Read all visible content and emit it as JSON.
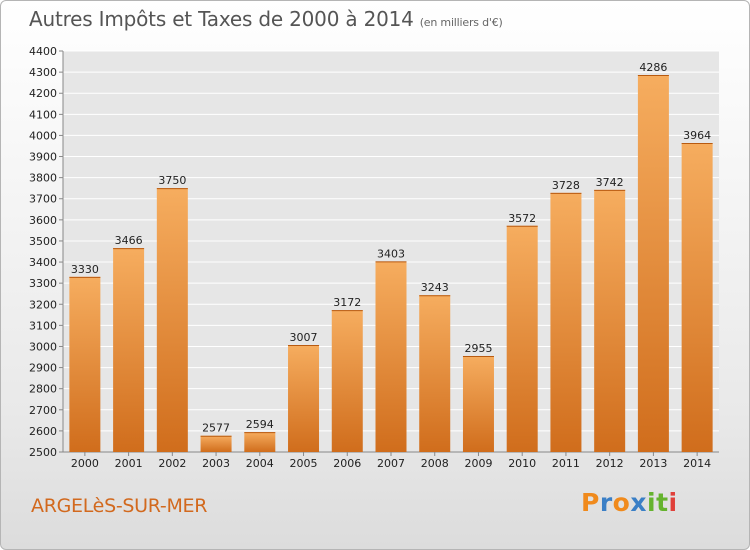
{
  "header": {
    "title": "Autres Impôts et Taxes de 2000 à 2014",
    "subtitle": "(en milliers d'€)"
  },
  "footer": {
    "place": "ARGELèS-SUR-MER",
    "logo_letters": [
      "P",
      "r",
      "o",
      "x",
      "i",
      "t",
      "i"
    ]
  },
  "colors": {
    "bar": "#f0903a",
    "bar_light": "#f6ad5f",
    "bar_dark": "#d06d1c",
    "place_text": "#d2691e",
    "logo": [
      "#f08a1c",
      "#3a7fc6",
      "#f08a1c",
      "#3a7fc6",
      "#65b32e",
      "#65b32e",
      "#e0403a"
    ]
  },
  "chart_data": {
    "type": "bar",
    "categories": [
      "2000",
      "2001",
      "2002",
      "2003",
      "2004",
      "2005",
      "2006",
      "2007",
      "2008",
      "2009",
      "2010",
      "2011",
      "2012",
      "2013",
      "2014"
    ],
    "values": [
      3330,
      3466,
      3750,
      2577,
      2594,
      3007,
      3172,
      3403,
      3243,
      2955,
      3572,
      3728,
      3742,
      4286,
      3964
    ],
    "ylim": [
      2500,
      4400
    ],
    "yticks": [
      2500,
      2600,
      2700,
      2800,
      2900,
      3000,
      3100,
      3200,
      3300,
      3400,
      3500,
      3600,
      3700,
      3800,
      3900,
      4000,
      4100,
      4200,
      4300,
      4400
    ],
    "grid": true,
    "data_labels": true
  }
}
